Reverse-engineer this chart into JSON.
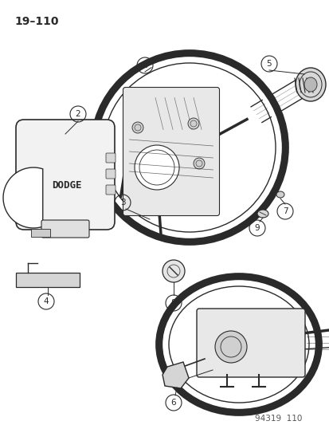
{
  "title": "19–110",
  "footer": "94319  110",
  "bg_color": "#ffffff",
  "lc": "#2a2a2a",
  "title_fontsize": 10,
  "footer_fontsize": 7.5
}
